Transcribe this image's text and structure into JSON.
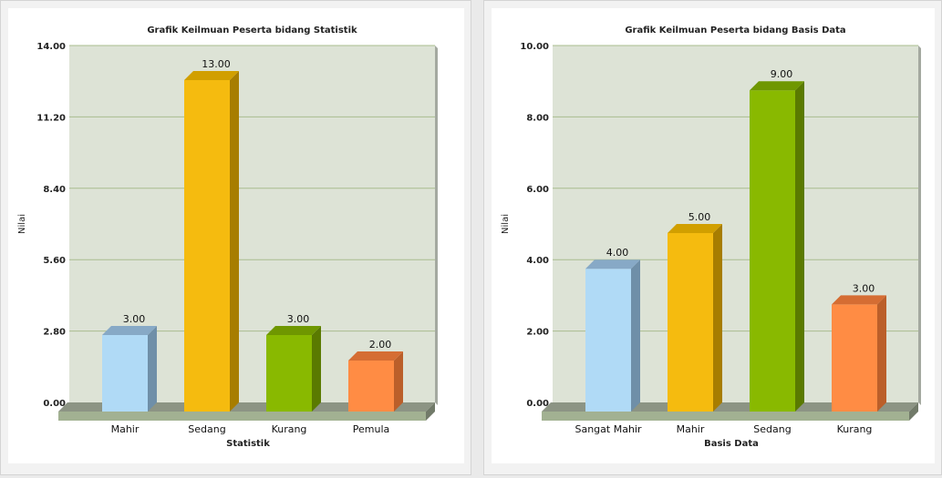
{
  "chart_data": [
    {
      "type": "bar",
      "title": "Grafik Keilmuan Peserta bidang Statistik",
      "xlabel": "Statistik",
      "ylabel": "Nilai",
      "categories": [
        "Mahir",
        "Sedang",
        "Kurang",
        "Pemula"
      ],
      "values": [
        3,
        13,
        3,
        2
      ],
      "value_labels": [
        "3.00",
        "13.00",
        "3.00",
        "2.00"
      ],
      "yticks": [
        "0.00",
        "2.80",
        "5.60",
        "8.40",
        "11.20",
        "14.00"
      ],
      "ylim": [
        0,
        14
      ],
      "grid": true,
      "bar_style": "3d",
      "colors": [
        "#b0daf6",
        "#f5bb0f",
        "#89b900",
        "#ff8c44"
      ],
      "side_colors": [
        "#6f8fa8",
        "#a77d00",
        "#5a7a00",
        "#bb5f2a"
      ],
      "top_colors": [
        "#87a9c6",
        "#d19f00",
        "#6f9700",
        "#d56d33"
      ]
    },
    {
      "type": "bar",
      "title": "Grafik Keilmuan Peserta bidang Basis Data",
      "xlabel": "Basis Data",
      "ylabel": "Nilai",
      "categories": [
        "Sangat Mahir",
        "Mahir",
        "Sedang",
        "Kurang"
      ],
      "values": [
        4,
        5,
        9,
        3
      ],
      "value_labels": [
        "4.00",
        "5.00",
        "9.00",
        "3.00"
      ],
      "yticks": [
        "0.00",
        "2.00",
        "4.00",
        "6.00",
        "8.00",
        "10.00"
      ],
      "ylim": [
        0,
        10
      ],
      "grid": true,
      "bar_style": "3d",
      "colors": [
        "#b0daf6",
        "#f5bb0f",
        "#89b900",
        "#ff8c44"
      ],
      "side_colors": [
        "#6f8fa8",
        "#a77d00",
        "#5a7a00",
        "#bb5f2a"
      ],
      "top_colors": [
        "#87a9c6",
        "#d19f00",
        "#6f9700",
        "#d56d33"
      ]
    }
  ],
  "theme": {
    "plot_bg": "#dde3d6",
    "plot_side": "#a4a9a0",
    "grid_line": "#a9bc8f",
    "floor_top": "#8c9484",
    "floor_front": "#a2b192",
    "floor_side": "#717a69",
    "panel_bg": "#ffffff"
  }
}
